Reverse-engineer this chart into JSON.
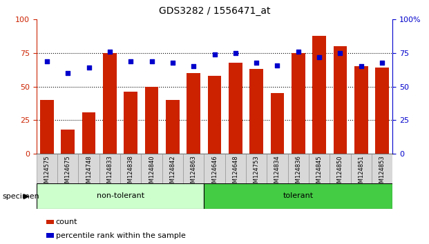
{
  "title": "GDS3282 / 1556471_at",
  "categories": [
    "GSM124575",
    "GSM124675",
    "GSM124748",
    "GSM124833",
    "GSM124838",
    "GSM124840",
    "GSM124842",
    "GSM124863",
    "GSM124646",
    "GSM124648",
    "GSM124753",
    "GSM124834",
    "GSM124836",
    "GSM124845",
    "GSM124850",
    "GSM124851",
    "GSM124853"
  ],
  "bar_values": [
    40,
    18,
    31,
    75,
    46,
    50,
    40,
    60,
    58,
    68,
    63,
    45,
    75,
    88,
    80,
    65,
    64
  ],
  "percentile_values": [
    69,
    60,
    64,
    76,
    69,
    69,
    68,
    65,
    74,
    75,
    68,
    66,
    76,
    72,
    75,
    65,
    68
  ],
  "non_tolerant_count": 8,
  "tolerant_count": 9,
  "bar_color": "#cc2200",
  "percentile_color": "#0000cc",
  "non_tolerant_bg": "#ccffcc",
  "tolerant_bg": "#44cc44",
  "tick_bg": "#d8d8d8",
  "ylim_left": [
    0,
    100
  ],
  "ylim_right": [
    0,
    100
  ],
  "yticks_left": [
    0,
    25,
    50,
    75,
    100
  ],
  "yticks_right": [
    0,
    25,
    50,
    75,
    100
  ],
  "grid_values": [
    25,
    50,
    75
  ],
  "legend_count_label": "count",
  "legend_percentile_label": "percentile rank within the sample",
  "specimen_label": "specimen",
  "non_tolerant_label": "non-tolerant",
  "tolerant_label": "tolerant",
  "bg_color": "#ffffff"
}
